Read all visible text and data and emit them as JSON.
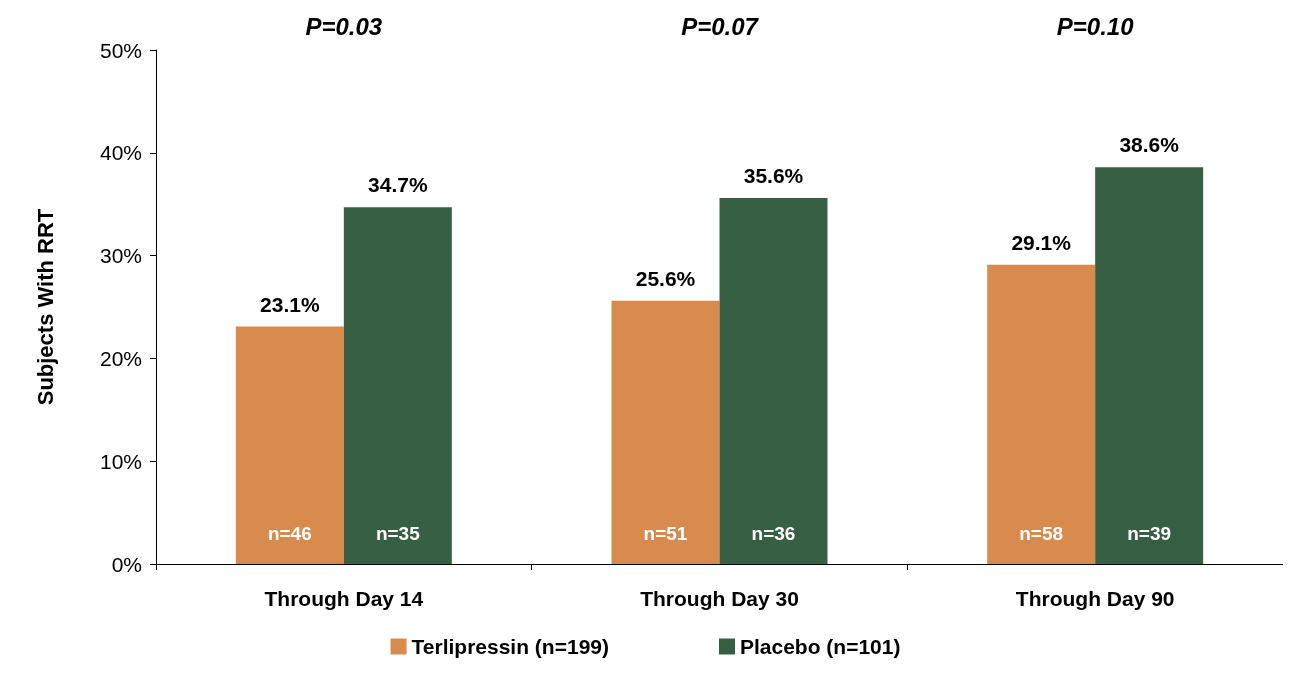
{
  "chart_data": {
    "type": "bar",
    "ylabel": "Subjects With RRT",
    "categories": [
      "Through Day 14",
      "Through Day 30",
      "Through Day 90"
    ],
    "series": [
      {
        "name": "Terlipressin (n=199)",
        "color": "#d98b4e",
        "values": [
          23.1,
          25.6,
          29.1
        ],
        "value_labels": [
          "23.1%",
          "25.6%",
          "29.1%"
        ]
      },
      {
        "name": "Placebo (n=101)",
        "color": "#375f44",
        "values": [
          34.7,
          35.6,
          38.6
        ],
        "value_labels": [
          "34.7%",
          "35.6%",
          "38.6%"
        ]
      }
    ],
    "ylim": [
      0,
      50
    ],
    "yticks": [
      {
        "value": 0,
        "label": "0%"
      },
      {
        "value": 10,
        "label": "10%"
      },
      {
        "value": 20,
        "label": "20%"
      },
      {
        "value": 30,
        "label": "30%"
      },
      {
        "value": 40,
        "label": "40%"
      },
      {
        "value": 50,
        "label": "50%"
      }
    ],
    "annotations": [
      "P=0.03",
      "P=0.07",
      "P=0.10",
      {
        "text": "n=46",
        "x": "Through Day 14",
        "y": 2
      },
      {
        "text": "n=35",
        "x": "Through Day 14",
        "y": 2
      },
      {
        "text": "n=51",
        "x": "Through Day 30",
        "y": 2
      },
      {
        "text": "n=36",
        "x": "Through Day 30",
        "y": 2
      },
      {
        "text": "n=58",
        "x": "Through Day 90",
        "y": 2
      },
      {
        "text": "n=39",
        "x": "Through Day 90",
        "y": 2
      }
    ],
    "grid": false,
    "legend": "bottom"
  }
}
